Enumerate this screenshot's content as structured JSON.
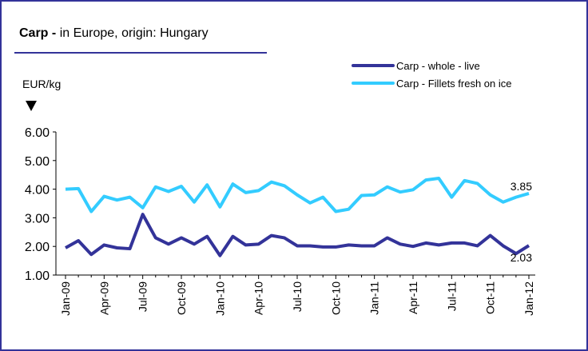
{
  "chart_data": {
    "type": "line",
    "title_prefix": "Carp -",
    "title": "in Europe, origin: Hungary",
    "y_label": "EUR/kg",
    "categories": [
      "Jan-09",
      null,
      null,
      "Apr-09",
      null,
      null,
      "Jul-09",
      null,
      null,
      "Oct-09",
      null,
      null,
      "Jan-10",
      null,
      null,
      "Apr-10",
      null,
      null,
      "Jul-10",
      null,
      null,
      "Oct-10",
      null,
      null,
      "Jan-11",
      null,
      null,
      "Apr-11",
      null,
      null,
      "Jul-11",
      null,
      null,
      "Oct-11",
      null,
      null,
      "Jan-12"
    ],
    "series": [
      {
        "name": "Carp - whole - live",
        "color": "#333399",
        "values": [
          1.95,
          2.2,
          1.72,
          2.05,
          1.95,
          1.92,
          3.12,
          2.3,
          2.08,
          2.3,
          2.08,
          2.35,
          1.68,
          2.35,
          2.05,
          2.08,
          2.38,
          2.3,
          2.02,
          2.02,
          1.98,
          1.98,
          2.05,
          2.02,
          2.02,
          2.3,
          2.08,
          2.0,
          2.12,
          2.05,
          2.12,
          2.12,
          2.02,
          2.38,
          2.02,
          1.75,
          2.03
        ]
      },
      {
        "name": "Carp - Fillets fresh on ice",
        "color": "#33ccff",
        "values": [
          4.0,
          4.02,
          3.22,
          3.75,
          3.62,
          3.72,
          3.35,
          4.08,
          3.92,
          4.1,
          3.55,
          4.15,
          3.38,
          4.18,
          3.88,
          3.95,
          4.25,
          4.12,
          3.8,
          3.52,
          3.72,
          3.22,
          3.3,
          3.78,
          3.8,
          4.08,
          3.9,
          3.98,
          4.32,
          4.38,
          3.72,
          4.3,
          4.2,
          3.8,
          3.55,
          3.72,
          3.85
        ]
      }
    ],
    "ylim": [
      1,
      6
    ],
    "yticks": [
      {
        "value": 1,
        "label": "1.00"
      },
      {
        "value": 2,
        "label": "2.00"
      },
      {
        "value": 3,
        "label": "3.00"
      },
      {
        "value": 4,
        "label": "4.00"
      },
      {
        "value": 5,
        "label": "5.00"
      },
      {
        "value": 6,
        "label": "6.00"
      }
    ],
    "grid": false,
    "legend": "top-right"
  }
}
